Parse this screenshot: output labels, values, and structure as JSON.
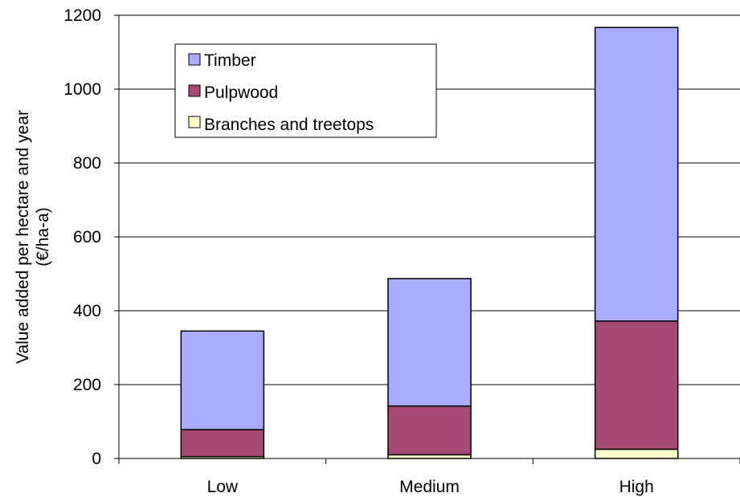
{
  "chart_data": {
    "type": "bar",
    "stacked": true,
    "categories": [
      "Low",
      "Medium",
      "High"
    ],
    "series": [
      {
        "name": "Branches and treetops",
        "color": "#ffffcc",
        "values": [
          5,
          10,
          25
        ]
      },
      {
        "name": "Pulpwood",
        "color": "#a54a74",
        "values": [
          73,
          132,
          347
        ]
      },
      {
        "name": "Timber",
        "color": "#a8abff",
        "values": [
          267,
          345,
          795
        ]
      }
    ],
    "legend_order": [
      "Timber",
      "Pulpwood",
      "Branches and treetops"
    ],
    "ylabel_lines": [
      "Value added per hectare and year",
      "(€/ha-a)"
    ],
    "xlabel": "",
    "ylim": [
      0,
      1200
    ],
    "yticks": [
      0,
      200,
      400,
      600,
      800,
      1000,
      1200
    ],
    "grid": true,
    "legend_position": "top-left"
  }
}
